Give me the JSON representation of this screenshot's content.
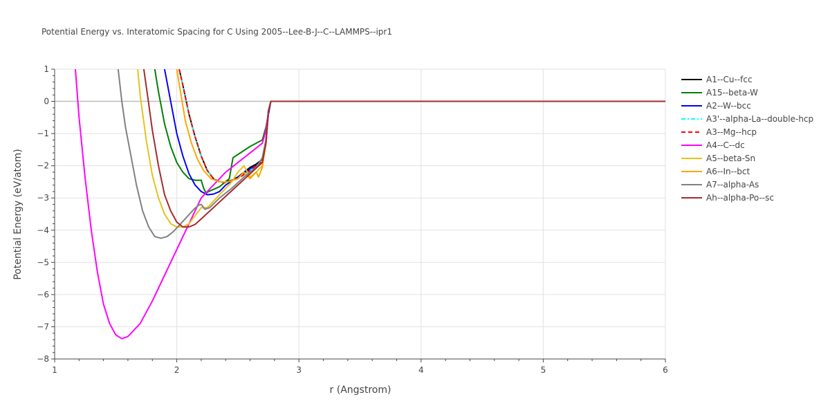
{
  "chart_data": {
    "type": "line",
    "title": "Potential Energy vs. Interatomic Spacing for C Using 2005--Lee-B-J--C--LAMMPS--ipr1",
    "xlabel": "r (Angstrom)",
    "ylabel": "Potential Energy (eV/atom)",
    "xlim": [
      1,
      6
    ],
    "ylim": [
      -8,
      1
    ],
    "xticks": [
      1,
      2,
      3,
      4,
      5,
      6
    ],
    "yticks": [
      1,
      0,
      -1,
      -2,
      -3,
      -4,
      -5,
      -6,
      -7,
      -8
    ],
    "xtick_labels": [
      "1",
      "2",
      "3",
      "4",
      "5",
      "6"
    ],
    "ytick_labels": [
      "1",
      "0",
      "−1",
      "−2",
      "−3",
      "−4",
      "−5",
      "−6",
      "−7",
      "−8"
    ],
    "grid": true,
    "legend_position": "right",
    "series": [
      {
        "name": "A1--Cu--fcc",
        "color": "#000000",
        "dash": "solid",
        "points": [
          [
            2.02,
            1.0
          ],
          [
            2.05,
            0.5
          ],
          [
            2.1,
            -0.4
          ],
          [
            2.15,
            -1.1
          ],
          [
            2.2,
            -1.7
          ],
          [
            2.25,
            -2.15
          ],
          [
            2.3,
            -2.4
          ],
          [
            2.35,
            -2.5
          ],
          [
            2.4,
            -2.5
          ],
          [
            2.45,
            -2.45
          ],
          [
            2.5,
            -2.35
          ],
          [
            2.55,
            -2.2
          ],
          [
            2.6,
            -2.05
          ],
          [
            2.65,
            -1.95
          ],
          [
            2.7,
            -1.8
          ],
          [
            2.73,
            -1.2
          ],
          [
            2.75,
            -0.3
          ],
          [
            2.77,
            0.0
          ],
          [
            6.0,
            0.0
          ]
        ]
      },
      {
        "name": "A15--beta-W",
        "color": "#008000",
        "dash": "solid",
        "points": [
          [
            1.82,
            1.0
          ],
          [
            1.85,
            0.3
          ],
          [
            1.9,
            -0.7
          ],
          [
            1.95,
            -1.4
          ],
          [
            2.0,
            -1.9
          ],
          [
            2.05,
            -2.2
          ],
          [
            2.1,
            -2.4
          ],
          [
            2.15,
            -2.45
          ],
          [
            2.2,
            -2.45
          ],
          [
            2.22,
            -2.7
          ],
          [
            2.24,
            -2.85
          ],
          [
            2.26,
            -2.8
          ],
          [
            2.35,
            -2.65
          ],
          [
            2.43,
            -2.4
          ],
          [
            2.46,
            -1.75
          ],
          [
            2.5,
            -1.65
          ],
          [
            2.6,
            -1.4
          ],
          [
            2.7,
            -1.2
          ],
          [
            2.73,
            -0.8
          ],
          [
            2.76,
            -0.2
          ],
          [
            2.77,
            0.0
          ],
          [
            6.0,
            0.0
          ]
        ]
      },
      {
        "name": "A2--W--bcc",
        "color": "#0000ff",
        "dash": "solid",
        "points": [
          [
            1.9,
            1.0
          ],
          [
            1.93,
            0.4
          ],
          [
            1.97,
            -0.4
          ],
          [
            2.0,
            -1.0
          ],
          [
            2.05,
            -1.7
          ],
          [
            2.1,
            -2.25
          ],
          [
            2.15,
            -2.6
          ],
          [
            2.2,
            -2.8
          ],
          [
            2.25,
            -2.9
          ],
          [
            2.3,
            -2.88
          ],
          [
            2.35,
            -2.8
          ],
          [
            2.4,
            -2.6
          ],
          [
            2.5,
            -2.35
          ],
          [
            2.6,
            -2.1
          ],
          [
            2.7,
            -1.9
          ],
          [
            2.73,
            -1.3
          ],
          [
            2.75,
            -0.4
          ],
          [
            2.77,
            0.0
          ],
          [
            6.0,
            0.0
          ]
        ]
      },
      {
        "name": "A3'--alpha-La--double-hcp",
        "color": "#00ffff",
        "dash": "dashdot",
        "points": [
          [
            2.02,
            1.0
          ],
          [
            2.05,
            0.5
          ],
          [
            2.1,
            -0.4
          ],
          [
            2.15,
            -1.1
          ],
          [
            2.2,
            -1.7
          ],
          [
            2.25,
            -2.15
          ],
          [
            2.3,
            -2.4
          ],
          [
            2.35,
            -2.5
          ],
          [
            2.4,
            -2.52
          ],
          [
            2.5,
            -2.4
          ],
          [
            2.6,
            -2.15
          ],
          [
            2.7,
            -1.85
          ],
          [
            2.73,
            -1.2
          ],
          [
            2.75,
            -0.3
          ],
          [
            2.77,
            0.0
          ],
          [
            6.0,
            0.0
          ]
        ]
      },
      {
        "name": "A3--Mg--hcp",
        "color": "#ff0000",
        "dash": "dash",
        "points": [
          [
            2.02,
            1.0
          ],
          [
            2.05,
            0.5
          ],
          [
            2.1,
            -0.4
          ],
          [
            2.15,
            -1.1
          ],
          [
            2.2,
            -1.7
          ],
          [
            2.25,
            -2.15
          ],
          [
            2.3,
            -2.4
          ],
          [
            2.35,
            -2.5
          ],
          [
            2.4,
            -2.52
          ],
          [
            2.5,
            -2.4
          ],
          [
            2.6,
            -2.15
          ],
          [
            2.7,
            -1.85
          ],
          [
            2.73,
            -1.2
          ],
          [
            2.75,
            -0.3
          ],
          [
            2.77,
            0.0
          ],
          [
            6.0,
            0.0
          ]
        ]
      },
      {
        "name": "A4--C--dc",
        "color": "#ff00ff",
        "dash": "solid",
        "points": [
          [
            1.17,
            1.0
          ],
          [
            1.2,
            -0.5
          ],
          [
            1.25,
            -2.4
          ],
          [
            1.3,
            -4.0
          ],
          [
            1.35,
            -5.3
          ],
          [
            1.4,
            -6.3
          ],
          [
            1.45,
            -6.9
          ],
          [
            1.5,
            -7.25
          ],
          [
            1.55,
            -7.37
          ],
          [
            1.6,
            -7.3
          ],
          [
            1.7,
            -6.9
          ],
          [
            1.8,
            -6.2
          ],
          [
            1.9,
            -5.4
          ],
          [
            2.0,
            -4.6
          ],
          [
            2.1,
            -3.8
          ],
          [
            2.2,
            -3.0
          ],
          [
            2.3,
            -2.6
          ],
          [
            2.4,
            -2.2
          ],
          [
            2.5,
            -1.9
          ],
          [
            2.6,
            -1.6
          ],
          [
            2.7,
            -1.3
          ],
          [
            2.73,
            -0.9
          ],
          [
            2.75,
            -0.3
          ],
          [
            2.77,
            0.0
          ],
          [
            6.0,
            0.0
          ]
        ]
      },
      {
        "name": "A5--beta-Sn",
        "color": "#e6c21a",
        "dash": "solid",
        "points": [
          [
            1.68,
            1.0
          ],
          [
            1.7,
            0.2
          ],
          [
            1.75,
            -1.2
          ],
          [
            1.8,
            -2.3
          ],
          [
            1.85,
            -3.0
          ],
          [
            1.9,
            -3.5
          ],
          [
            1.95,
            -3.8
          ],
          [
            2.0,
            -3.9
          ],
          [
            2.05,
            -3.9
          ],
          [
            2.1,
            -3.8
          ],
          [
            2.15,
            -3.55
          ],
          [
            2.2,
            -3.3
          ],
          [
            2.25,
            -3.3
          ],
          [
            2.3,
            -3.1
          ],
          [
            2.35,
            -2.9
          ],
          [
            2.4,
            -2.7
          ],
          [
            2.45,
            -2.5
          ],
          [
            2.5,
            -2.2
          ],
          [
            2.55,
            -2.0
          ],
          [
            2.6,
            -2.35
          ],
          [
            2.65,
            -2.2
          ],
          [
            2.7,
            -2.0
          ],
          [
            2.73,
            -1.3
          ],
          [
            2.75,
            -0.3
          ],
          [
            2.77,
            0.0
          ],
          [
            6.0,
            0.0
          ]
        ]
      },
      {
        "name": "A6--In--bct",
        "color": "#ffa500",
        "dash": "solid",
        "points": [
          [
            2.0,
            1.0
          ],
          [
            2.03,
            0.3
          ],
          [
            2.07,
            -0.6
          ],
          [
            2.12,
            -1.3
          ],
          [
            2.17,
            -1.8
          ],
          [
            2.22,
            -2.15
          ],
          [
            2.28,
            -2.4
          ],
          [
            2.35,
            -2.5
          ],
          [
            2.42,
            -2.5
          ],
          [
            2.5,
            -2.4
          ],
          [
            2.55,
            -2.2
          ],
          [
            2.6,
            -2.4
          ],
          [
            2.65,
            -2.2
          ],
          [
            2.67,
            -2.35
          ],
          [
            2.7,
            -2.05
          ],
          [
            2.73,
            -1.3
          ],
          [
            2.75,
            -0.3
          ],
          [
            2.77,
            0.0
          ],
          [
            6.0,
            0.0
          ]
        ]
      },
      {
        "name": "A7--alpha-As",
        "color": "#808080",
        "dash": "solid",
        "points": [
          [
            1.52,
            1.0
          ],
          [
            1.55,
            0.0
          ],
          [
            1.58,
            -0.8
          ],
          [
            1.62,
            -1.6
          ],
          [
            1.67,
            -2.6
          ],
          [
            1.72,
            -3.4
          ],
          [
            1.77,
            -3.9
          ],
          [
            1.82,
            -4.2
          ],
          [
            1.87,
            -4.25
          ],
          [
            1.92,
            -4.2
          ],
          [
            1.97,
            -4.05
          ],
          [
            2.02,
            -3.85
          ],
          [
            2.08,
            -3.6
          ],
          [
            2.14,
            -3.35
          ],
          [
            2.18,
            -3.22
          ],
          [
            2.2,
            -3.2
          ],
          [
            2.23,
            -3.35
          ],
          [
            2.27,
            -3.3
          ],
          [
            2.35,
            -3.0
          ],
          [
            2.45,
            -2.7
          ],
          [
            2.55,
            -2.35
          ],
          [
            2.65,
            -2.05
          ],
          [
            2.7,
            -1.75
          ],
          [
            2.73,
            -1.2
          ],
          [
            2.75,
            -0.3
          ],
          [
            2.77,
            0.0
          ],
          [
            6.0,
            0.0
          ]
        ]
      },
      {
        "name": "Ah--alpha-Po--sc",
        "color": "#a52a2a",
        "dash": "solid",
        "points": [
          [
            1.73,
            1.0
          ],
          [
            1.76,
            0.2
          ],
          [
            1.8,
            -0.9
          ],
          [
            1.85,
            -2.0
          ],
          [
            1.9,
            -2.9
          ],
          [
            1.95,
            -3.4
          ],
          [
            2.0,
            -3.75
          ],
          [
            2.05,
            -3.9
          ],
          [
            2.1,
            -3.9
          ],
          [
            2.15,
            -3.82
          ],
          [
            2.2,
            -3.65
          ],
          [
            2.3,
            -3.3
          ],
          [
            2.4,
            -2.95
          ],
          [
            2.5,
            -2.6
          ],
          [
            2.6,
            -2.25
          ],
          [
            2.7,
            -1.9
          ],
          [
            2.73,
            -1.3
          ],
          [
            2.75,
            -0.3
          ],
          [
            2.77,
            0.0
          ],
          [
            6.0,
            0.0
          ]
        ]
      }
    ]
  }
}
